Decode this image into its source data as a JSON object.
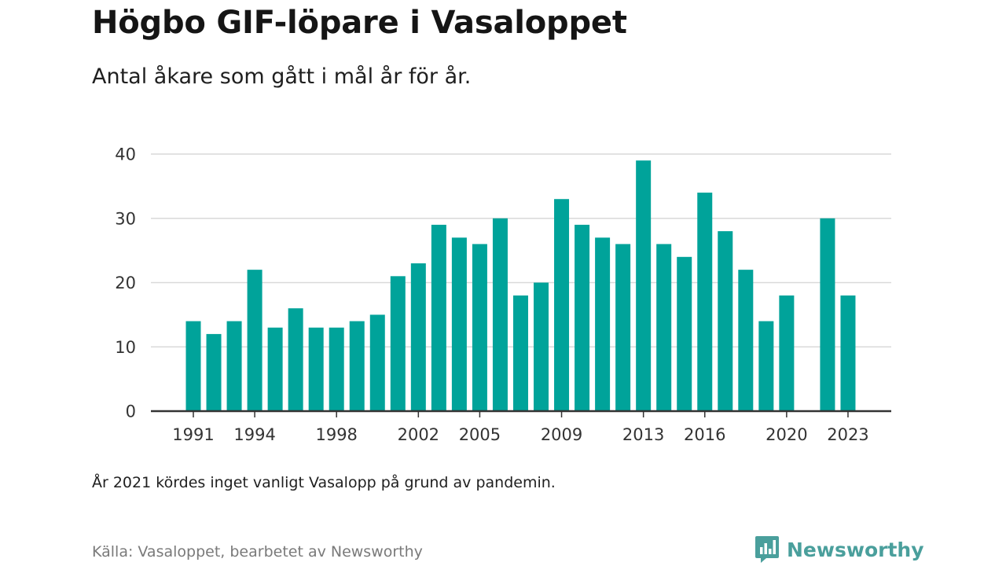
{
  "header": {
    "title": "Högbo GIF-löpare i Vasaloppet",
    "subtitle": "Antal åkare som gått i mål år för år."
  },
  "footer": {
    "note": "År 2021 kördes inget vanligt Vasalopp på grund av pandemin.",
    "source": "Källa: Vasaloppet, bearbetet av Newsworthy",
    "brand": "Newsworthy"
  },
  "colors": {
    "bar": "#00a39a",
    "grid": "#d9d9d9",
    "axis": "#333333",
    "brand": "#4a9f9c"
  },
  "icons": {
    "brand_logo": "newsworthy-chart-bubble-icon"
  },
  "chart_data": {
    "type": "bar",
    "title": "Högbo GIF-löpare i Vasaloppet",
    "subtitle": "Antal åkare som gått i mål år för år.",
    "xlabel": "",
    "ylabel": "",
    "ylim": [
      0,
      40
    ],
    "yticks": [
      0,
      10,
      20,
      30,
      40
    ],
    "xticks": [
      1991,
      1994,
      1998,
      2002,
      2005,
      2009,
      2013,
      2016,
      2020,
      2023
    ],
    "grid": true,
    "categories": [
      1991,
      1992,
      1993,
      1994,
      1995,
      1996,
      1997,
      1998,
      1999,
      2000,
      2001,
      2002,
      2003,
      2004,
      2005,
      2006,
      2007,
      2008,
      2009,
      2010,
      2011,
      2012,
      2013,
      2014,
      2015,
      2016,
      2017,
      2018,
      2019,
      2020,
      2021,
      2022,
      2023
    ],
    "values": [
      14,
      12,
      14,
      22,
      13,
      16,
      13,
      13,
      14,
      15,
      21,
      23,
      29,
      27,
      26,
      30,
      18,
      20,
      33,
      29,
      27,
      26,
      39,
      26,
      24,
      34,
      28,
      22,
      14,
      18,
      null,
      30,
      18
    ]
  }
}
